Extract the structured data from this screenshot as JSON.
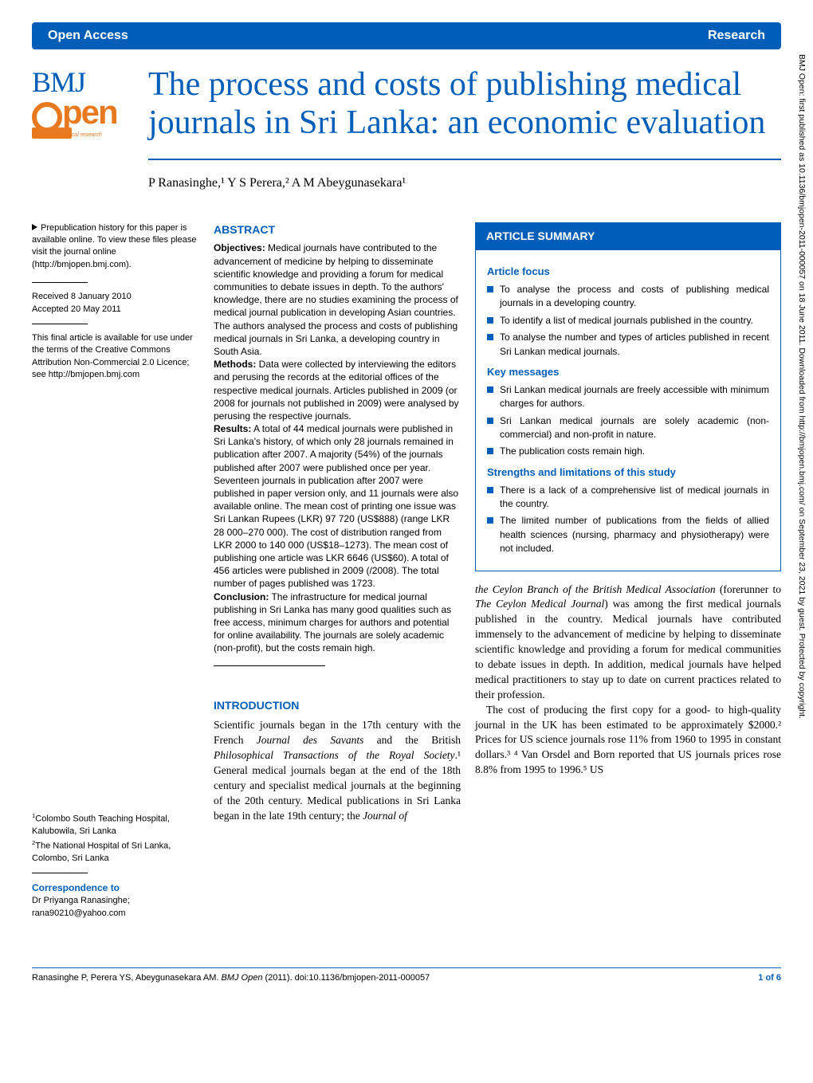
{
  "header": {
    "left": "Open Access",
    "right": "Research"
  },
  "logo": {
    "bmj": "BMJ",
    "open": "pen",
    "subtitle": "accessible medical research"
  },
  "title": "The process and costs of publishing medical journals in Sri Lanka: an economic evaluation",
  "authors": "P Ranasinghe,¹ Y S Perera,² A M Abeygunasekara¹",
  "sidebar": {
    "prepub": "Prepublication history for this paper is available online. To view these files please visit the journal online (http://bmjopen.bmj.com).",
    "received": "Received 8 January 2010",
    "accepted": "Accepted 20 May 2011",
    "licence": "This final article is available for use under the terms of the Creative Commons Attribution Non-Commercial 2.0 Licence; see http://bmjopen.bmj.com",
    "affil1_sup": "1",
    "affil1": "Colombo South Teaching Hospital, Kalubowila, Sri Lanka",
    "affil2_sup": "2",
    "affil2": "The National Hospital of Sri Lanka, Colombo, Sri Lanka",
    "corr_label": "Correspondence to",
    "corr_name": "Dr Priyanga Ranasinghe;",
    "corr_email": "rana90210@yahoo.com"
  },
  "abstract": {
    "heading": "ABSTRACT",
    "objectives_label": "Objectives:",
    "objectives": " Medical journals have contributed to the advancement of medicine by helping to disseminate scientific knowledge and providing a forum for medical communities to debate issues in depth. To the authors' knowledge, there are no studies examining the process of medical journal publication in developing Asian countries. The authors analysed the process and costs of publishing medical journals in Sri Lanka, a developing country in South Asia.",
    "methods_label": "Methods:",
    "methods": " Data were collected by interviewing the editors and perusing the records at the editorial offices of the respective medical journals. Articles published in 2009 (or 2008 for journals not published in 2009) were analysed by perusing the respective journals.",
    "results_label": "Results:",
    "results": " A total of 44 medical journals were published in Sri Lanka's history, of which only 28 journals remained in publication after 2007. A majority (54%) of the journals published after 2007 were published once per year. Seventeen journals in publication after 2007 were published in paper version only, and 11 journals were also available online. The mean cost of printing one issue was Sri Lankan Rupees (LKR) 97 720 (US$888) (range LKR 28 000–270 000). The cost of distribution ranged from LKR 2000 to 140 000 (US$18–1273). The mean cost of publishing one article was LKR 6646 (US$60). A total of 456 articles were published in 2009 (/2008). The total number of pages published was 1723.",
    "conclusion_label": "Conclusion:",
    "conclusion": " The infrastructure for medical journal publishing in Sri Lanka has many good qualities such as free access, minimum charges for authors and potential for online availability. The journals are solely academic (non-profit), but the costs remain high."
  },
  "summary": {
    "box_title": "ARTICLE SUMMARY",
    "focus_title": "Article focus",
    "focus_items": [
      "To analyse the process and costs of publishing medical journals in a developing country.",
      "To identify a list of medical journals published in the country.",
      "To analyse the number and types of articles published in recent Sri Lankan medical journals."
    ],
    "keymsg_title": "Key messages",
    "keymsg_items": [
      "Sri Lankan medical journals are freely accessible with minimum charges for authors.",
      "Sri Lankan medical journals are solely academic (non-commercial) and non-profit in nature.",
      "The publication costs remain high."
    ],
    "strengths_title": "Strengths and limitations of this study",
    "strengths_items": [
      "There is a lack of a comprehensive list of medical journals in the country.",
      "The limited number of publications from the fields of allied health sciences (nursing, pharmacy and physiotherapy) were not included."
    ]
  },
  "intro": {
    "heading": "INTRODUCTION",
    "col1": "Scientific journals began in the 17th century with the French Journal des Savants and the British Philosophical Transactions of the Royal Society.¹ General medical journals began at the end of the 18th century and specialist medical journals at the beginning of the 20th century. Medical publications in Sri Lanka began in the late 19th century; the Journal of",
    "col2_p1": "the Ceylon Branch of the British Medical Association (forerunner to The Ceylon Medical Journal) was among the first medical journals published in the country. Medical journals have contributed immensely to the advancement of medicine by helping to disseminate scientific knowledge and providing a forum for medical communities to debate issues in depth. In addition, medical journals have helped medical practitioners to stay up to date on current practices related to their profession.",
    "col2_p2": "The cost of producing the first copy for a good- to high-quality journal in the UK has been estimated to be approximately $2000.² Prices for US science journals rose 11% from 1960 to 1995 in constant dollars.³ ⁴ Van Orsdel and Born reported that US journals prices rose 8.8% from 1995 to 1996.⁵ US"
  },
  "footer": {
    "citation_authors": "Ranasinghe P, Perera YS, Abeygunasekara AM. ",
    "citation_journal": "BMJ Open",
    "citation_rest": " (2011). doi:10.1136/bmjopen-2011-000057",
    "page": "1 of 6"
  },
  "watermark": "BMJ Open: first published as 10.1136/bmjopen-2011-000057 on 18 June 2011. Downloaded from http://bmjopen.bmj.com/ on September 23, 2021 by guest. Protected by copyright.",
  "colors": {
    "brand_blue": "#005eb8",
    "brand_orange": "#e8791e",
    "text": "#000000",
    "background": "#ffffff"
  }
}
